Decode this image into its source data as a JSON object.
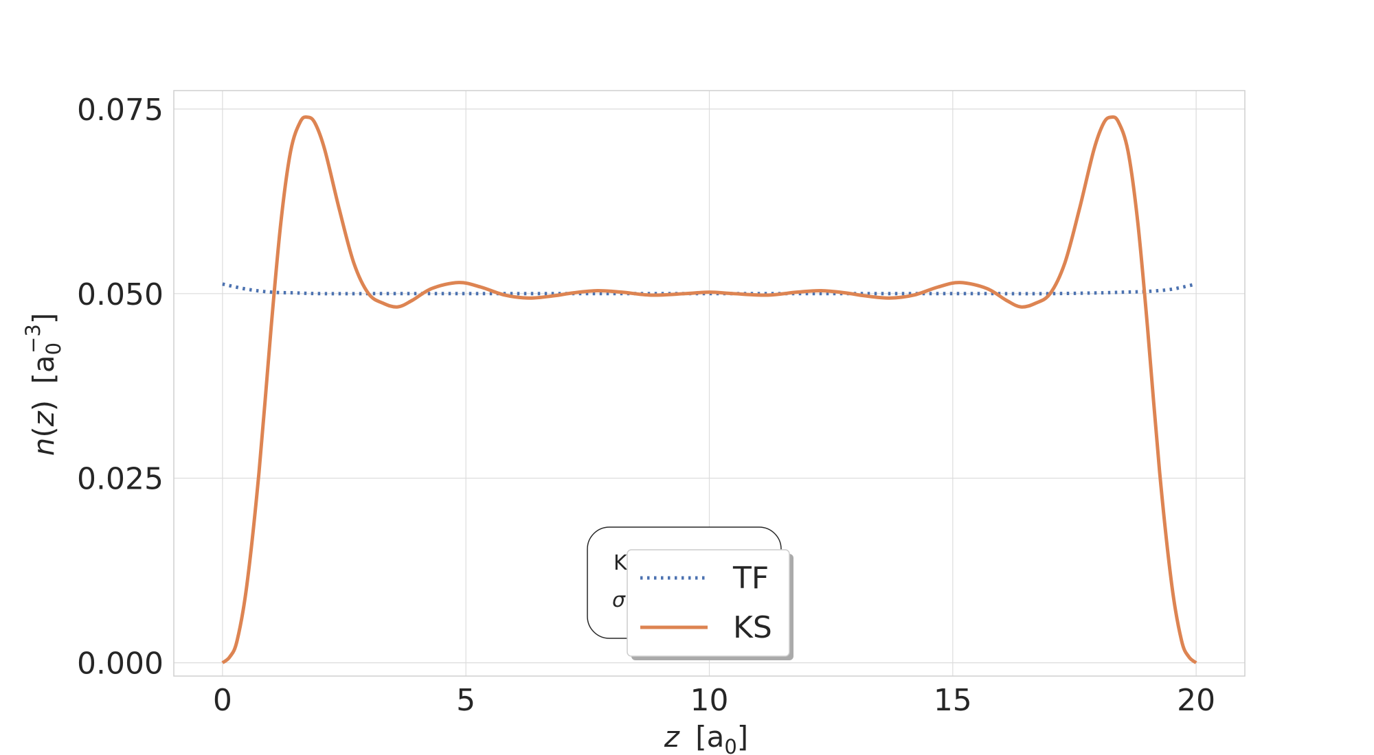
{
  "colors": {
    "background": "#ffffff",
    "grid": "#dcdcdc",
    "frame": "#cfcfcf",
    "text": "#262626",
    "tf": "#4c72b0",
    "ks": "#dd8452"
  },
  "chart_data": {
    "type": "line",
    "title": "",
    "xlabel_var": "z",
    "xlabel_unit": "[a",
    "xlabel_sub": "0",
    "xlabel_close": "]",
    "ylabel_fn": "n",
    "ylabel_arg": "(",
    "ylabel_var": "z",
    "ylabel_argclose": ")",
    "ylabel_unit": "[a",
    "ylabel_sub": "0",
    "ylabel_sup": "−3",
    "ylabel_close": "]",
    "xlim": [
      -1,
      21
    ],
    "ylim": [
      -0.0018,
      0.0775
    ],
    "xticks": [
      0,
      5,
      10,
      15,
      20
    ],
    "xtick_labels": [
      "0",
      "5",
      "10",
      "15",
      "20"
    ],
    "yticks": [
      0.0,
      0.025,
      0.05,
      0.075
    ],
    "ytick_labels": [
      "0.000",
      "0.025",
      "0.050",
      "0.075"
    ],
    "grid": true,
    "legend_placement": "lower center",
    "hidden_annotation": {
      "line1": "K",
      "line2": "σ"
    },
    "series": [
      {
        "name": "TF",
        "style": "dotted",
        "x": [
          0,
          0.5,
          1,
          1.5,
          2,
          3,
          4,
          5,
          6,
          7,
          8,
          9,
          10,
          11,
          12,
          13,
          14,
          15,
          16,
          17,
          18,
          18.5,
          19,
          19.5,
          20
        ],
        "y": [
          0.0513,
          0.0506,
          0.0502,
          0.0501,
          0.05,
          0.05,
          0.05,
          0.05,
          0.05,
          0.05,
          0.05,
          0.05,
          0.05,
          0.05,
          0.05,
          0.05,
          0.05,
          0.05,
          0.05,
          0.05,
          0.0501,
          0.0502,
          0.0503,
          0.0506,
          0.0513
        ]
      },
      {
        "name": "KS",
        "style": "solid",
        "x": [
          0,
          0.15,
          0.3,
          0.5,
          0.75,
          1.0,
          1.2,
          1.4,
          1.6,
          1.75,
          1.9,
          2.1,
          2.4,
          2.7,
          3.0,
          3.3,
          3.6,
          3.9,
          4.3,
          4.85,
          5.3,
          5.8,
          6.3,
          6.8,
          7.2,
          7.7,
          8.2,
          8.8,
          9.5,
          10.0,
          10.5,
          11.2,
          11.8,
          12.3,
          12.8,
          13.2,
          13.7,
          14.2,
          14.7,
          15.15,
          15.7,
          16.1,
          16.4,
          16.7,
          17.0,
          17.3,
          17.6,
          17.9,
          18.1,
          18.25,
          18.4,
          18.6,
          18.8,
          19.0,
          19.25,
          19.5,
          19.7,
          19.85,
          20.0
        ],
        "y": [
          0.0,
          0.0008,
          0.003,
          0.0105,
          0.0258,
          0.0455,
          0.0597,
          0.0693,
          0.0733,
          0.0739,
          0.0731,
          0.0695,
          0.0614,
          0.0541,
          0.05,
          0.0487,
          0.0482,
          0.0491,
          0.0507,
          0.0515,
          0.0509,
          0.0498,
          0.0494,
          0.0497,
          0.0501,
          0.0504,
          0.0502,
          0.0498,
          0.05,
          0.0502,
          0.05,
          0.0498,
          0.0502,
          0.0504,
          0.0501,
          0.0497,
          0.0494,
          0.0498,
          0.0509,
          0.0515,
          0.0507,
          0.0491,
          0.0482,
          0.0487,
          0.05,
          0.0541,
          0.0614,
          0.0695,
          0.0731,
          0.0739,
          0.0733,
          0.0693,
          0.0597,
          0.0455,
          0.0258,
          0.0105,
          0.003,
          0.0008,
          0.0
        ]
      }
    ]
  }
}
